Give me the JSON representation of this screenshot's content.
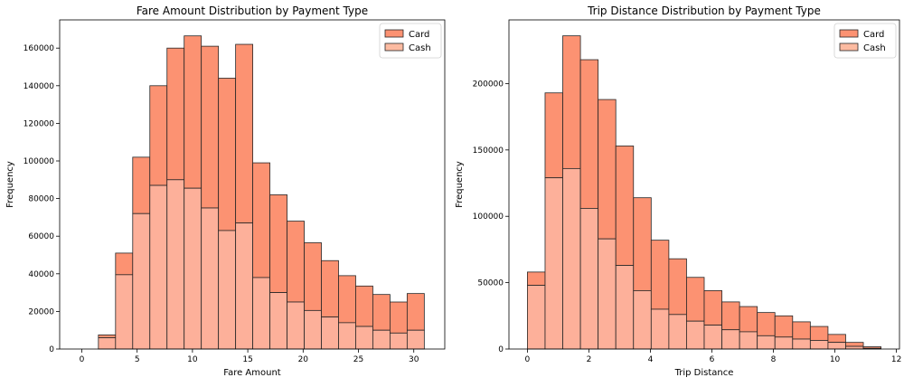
{
  "colors": {
    "card": "#fc9272",
    "cash": "#fcbba1",
    "cash_overlap": "#fdb09a",
    "edge": "#262626"
  },
  "chart_data": [
    {
      "type": "bar",
      "stacked": true,
      "title": "Fare Amount Distribution by Payment Type",
      "xlabel": "Fare Amount",
      "ylabel": "Frequency",
      "xlim": [
        -2.0,
        32.8
      ],
      "ylim": [
        0,
        175000
      ],
      "xticks": [
        0,
        5,
        10,
        15,
        20,
        25,
        30
      ],
      "yticks": [
        0,
        20000,
        40000,
        60000,
        80000,
        100000,
        120000,
        140000,
        160000
      ],
      "bin_edges": [
        1.5,
        3.05,
        4.6,
        6.15,
        7.7,
        9.25,
        10.8,
        12.35,
        13.9,
        15.45,
        17.0,
        18.55,
        20.1,
        21.65,
        23.2,
        24.75,
        26.3,
        27.85,
        29.4,
        30.95
      ],
      "legend_position": "top-right",
      "series": [
        {
          "name": "Card",
          "values": [
            1500,
            11500,
            30000,
            53000,
            70000,
            81000,
            86000,
            81000,
            95000,
            61000,
            52000,
            43000,
            36000,
            30000,
            25000,
            21500,
            19000,
            16500,
            19500
          ]
        },
        {
          "name": "Cash",
          "values": [
            6000,
            39500,
            72000,
            87000,
            90000,
            85500,
            75000,
            63000,
            67000,
            38000,
            30000,
            25000,
            20500,
            17000,
            14000,
            12000,
            10000,
            8500,
            10000
          ]
        }
      ],
      "totals": [
        7500,
        51000,
        102000,
        140000,
        160000,
        166500,
        161000,
        144000,
        162000,
        99000,
        82000,
        68000,
        56500,
        47000,
        39000,
        33500,
        29000,
        25000,
        29500
      ]
    },
    {
      "type": "bar",
      "stacked": true,
      "title": "Trip Distance Distribution by Payment Type",
      "xlabel": "Trip Distance",
      "ylabel": "Frequency",
      "xlim": [
        -0.6,
        12.1
      ],
      "ylim": [
        0,
        248000
      ],
      "xticks": [
        0,
        2,
        4,
        6,
        8,
        10,
        12
      ],
      "yticks": [
        0,
        50000,
        100000,
        150000,
        200000
      ],
      "bin_edges": [
        0.0,
        0.575,
        1.15,
        1.725,
        2.3,
        2.875,
        3.45,
        4.025,
        4.6,
        5.175,
        5.75,
        6.325,
        6.9,
        7.475,
        8.05,
        8.625,
        9.2,
        9.775,
        10.35,
        10.925,
        11.5
      ],
      "legend_position": "top-right",
      "series": [
        {
          "name": "Card",
          "values": [
            10000,
            64000,
            100000,
            112000,
            105000,
            90000,
            70000,
            52000,
            42000,
            33000,
            26000,
            21000,
            19000,
            17500,
            16000,
            13000,
            10500,
            6000,
            3000,
            1200
          ]
        },
        {
          "name": "Cash",
          "values": [
            48000,
            129000,
            136000,
            106000,
            83000,
            63000,
            44000,
            30000,
            26000,
            21000,
            18000,
            14500,
            13000,
            10000,
            9000,
            7500,
            6500,
            5000,
            2000,
            500
          ]
        }
      ],
      "totals": [
        58000,
        193000,
        236000,
        218000,
        188000,
        153000,
        114000,
        82000,
        68000,
        54000,
        44000,
        35500,
        32000,
        27500,
        25000,
        20500,
        17000,
        11000,
        5000,
        1700
      ]
    }
  ]
}
